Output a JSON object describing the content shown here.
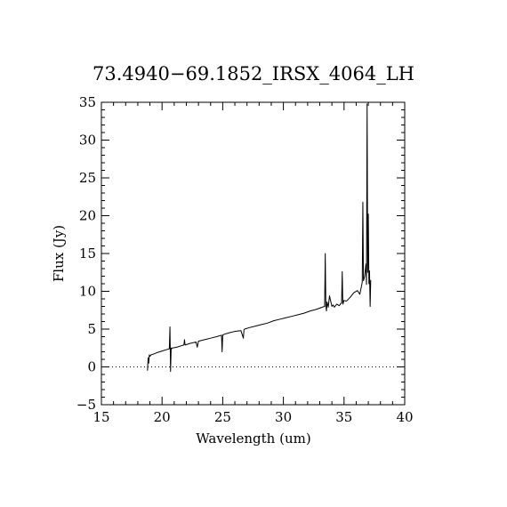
{
  "chart_data": {
    "type": "line",
    "title": "73.4940−69.1852_IRSX_4064_LH",
    "xlabel": "Wavelength (um)",
    "ylabel": "Flux (Jy)",
    "xlim": [
      15,
      40
    ],
    "ylim": [
      -5,
      35
    ],
    "xticks": [
      15,
      20,
      25,
      30,
      35,
      40
    ],
    "yticks": [
      -5,
      0,
      5,
      10,
      15,
      20,
      25,
      30,
      35
    ],
    "xtick_labels": [
      "15",
      "20",
      "25",
      "30",
      "35",
      "40"
    ],
    "ytick_labels": [
      "−5",
      "0",
      "5",
      "10",
      "15",
      "20",
      "25",
      "30",
      "35"
    ],
    "reference_line": {
      "y": 0,
      "style": "dotted"
    },
    "grid": false,
    "series": [
      {
        "color": "#000000",
        "x": [
          18.8,
          18.85,
          18.9,
          18.95,
          19.0,
          19.1,
          19.3,
          19.6,
          20.0,
          20.4,
          20.6,
          20.65,
          20.7,
          20.75,
          20.8,
          20.85,
          21.2,
          21.6,
          21.8,
          21.85,
          21.9,
          22.3,
          22.8,
          22.9,
          23.0,
          23.5,
          24.0,
          24.5,
          24.9,
          24.95,
          25.0,
          25.1,
          25.5,
          26.0,
          26.5,
          26.7,
          26.75,
          26.8,
          27.2,
          27.7,
          28.2,
          28.7,
          29.2,
          29.7,
          30.2,
          30.7,
          31.2,
          31.7,
          32.2,
          32.7,
          33.2,
          33.4,
          33.45,
          33.5,
          33.55,
          33.6,
          33.7,
          33.8,
          34.0,
          34.1,
          34.2,
          34.4,
          34.6,
          34.8,
          34.85,
          34.9,
          35.0,
          35.2,
          35.5,
          35.8,
          36.1,
          36.3,
          36.5,
          36.55,
          36.6,
          36.7,
          36.8,
          36.85,
          36.9,
          36.95,
          37.0,
          37.05,
          37.1,
          37.15,
          37.2
        ],
        "y": [
          -0.5,
          1.2,
          0.5,
          1.6,
          1.4,
          1.6,
          1.7,
          1.9,
          2.1,
          2.3,
          2.4,
          5.3,
          -0.6,
          2.5,
          2.4,
          2.5,
          2.6,
          2.8,
          2.9,
          3.6,
          2.9,
          3.1,
          3.3,
          2.6,
          3.4,
          3.6,
          3.8,
          4.0,
          4.2,
          2.0,
          4.2,
          4.3,
          4.5,
          4.7,
          4.8,
          3.8,
          4.9,
          5.0,
          5.2,
          5.4,
          5.6,
          5.8,
          6.1,
          6.3,
          6.5,
          6.7,
          6.9,
          7.1,
          7.4,
          7.6,
          7.9,
          8.0,
          15.0,
          8.1,
          7.4,
          8.6,
          7.9,
          9.4,
          8.0,
          8.2,
          7.9,
          8.3,
          8.1,
          8.5,
          12.6,
          8.3,
          8.8,
          8.7,
          9.2,
          9.8,
          10.1,
          9.6,
          11.2,
          21.8,
          11.4,
          12.0,
          13.6,
          10.9,
          34.8,
          12.5,
          20.2,
          11.0,
          12.7,
          8.0,
          11.5
        ]
      }
    ]
  }
}
